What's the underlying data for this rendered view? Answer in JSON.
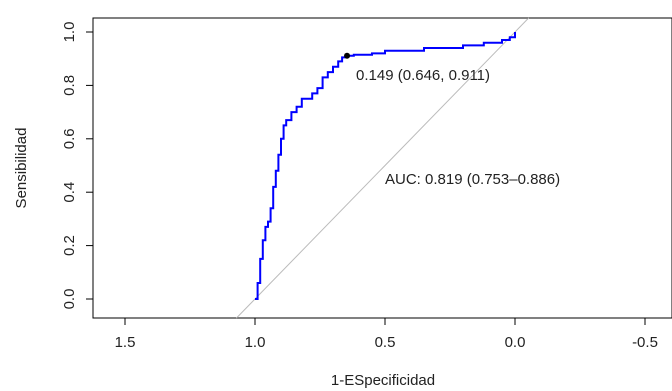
{
  "chart_data": {
    "type": "line",
    "title": "",
    "xlabel": "1-ESpecificidad",
    "ylabel": "Sensibilidad",
    "xlim": [
      1.5,
      -0.5
    ],
    "ylim": [
      0,
      1
    ],
    "x_reversed": true,
    "x_ticks": [
      1.5,
      1.0,
      0.5,
      0.0,
      -0.5
    ],
    "x_tick_labels": [
      "1.5",
      "1.0",
      "0.5",
      "0.0",
      "-0.5"
    ],
    "y_ticks": [
      0.0,
      0.2,
      0.4,
      0.6,
      0.8,
      1.0
    ],
    "y_tick_labels": [
      "0.0",
      "0.2",
      "0.4",
      "0.6",
      "0.8",
      "1.0"
    ],
    "grid": false,
    "series": [
      {
        "color": "#0000ff",
        "x": [
          1.0,
          0.99,
          0.99,
          0.98,
          0.98,
          0.97,
          0.97,
          0.96,
          0.96,
          0.95,
          0.95,
          0.94,
          0.94,
          0.93,
          0.93,
          0.92,
          0.92,
          0.91,
          0.91,
          0.9,
          0.9,
          0.89,
          0.89,
          0.88,
          0.88,
          0.86,
          0.86,
          0.84,
          0.84,
          0.82,
          0.82,
          0.78,
          0.78,
          0.76,
          0.76,
          0.74,
          0.74,
          0.72,
          0.72,
          0.7,
          0.7,
          0.68,
          0.68,
          0.665,
          0.665,
          0.646,
          0.646,
          0.62,
          0.62,
          0.55,
          0.55,
          0.5,
          0.5,
          0.35,
          0.35,
          0.2,
          0.2,
          0.12,
          0.12,
          0.05,
          0.05,
          0.02,
          0.02,
          0.0,
          0.0
        ],
        "y": [
          0.0,
          0.0,
          0.06,
          0.06,
          0.15,
          0.15,
          0.22,
          0.22,
          0.27,
          0.27,
          0.29,
          0.29,
          0.34,
          0.34,
          0.42,
          0.42,
          0.48,
          0.48,
          0.54,
          0.54,
          0.6,
          0.6,
          0.65,
          0.65,
          0.67,
          0.67,
          0.7,
          0.7,
          0.72,
          0.72,
          0.75,
          0.75,
          0.77,
          0.77,
          0.79,
          0.79,
          0.83,
          0.83,
          0.85,
          0.85,
          0.87,
          0.87,
          0.89,
          0.89,
          0.905,
          0.905,
          0.911,
          0.911,
          0.915,
          0.915,
          0.92,
          0.92,
          0.93,
          0.93,
          0.94,
          0.94,
          0.95,
          0.95,
          0.96,
          0.96,
          0.97,
          0.97,
          0.98,
          0.98,
          1.0
        ]
      }
    ],
    "diagonal": {
      "color": "#bbbbbb",
      "from": [
        1.0,
        0.0
      ],
      "to": [
        0.0,
        1.0
      ]
    },
    "threshold_point": {
      "x": 0.646,
      "y": 0.911,
      "label": "0.149 (0.646, 0.911)",
      "color": "#000000"
    },
    "annotations": [
      {
        "text": "AUC: 0.819 (0.753–0.886)",
        "x": 0.5,
        "y": 0.45,
        "color": "#0000ff"
      }
    ]
  }
}
